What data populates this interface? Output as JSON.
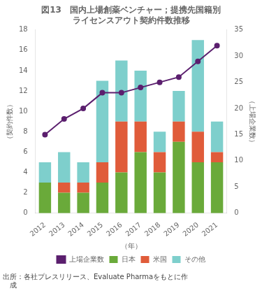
{
  "chart_data": {
    "type": "bar",
    "title": [
      "図13　国内上場創薬ベンチャー；提携先国籍別",
      "ライセンスアウト契約件数推移"
    ],
    "xlabel": "（年）",
    "ylabel": "（契約件数）",
    "y2label": "（上場企業数）",
    "annotations": [
      "出所：各社プレスリリース、Evaluate Pharmaをもとに作",
      "　成"
    ],
    "categories": [
      "2012",
      "2013",
      "2014",
      "2015",
      "2016",
      "2017",
      "2018",
      "2019",
      "2020",
      "2021"
    ],
    "series": [
      {
        "name": "日本",
        "type": "bar",
        "color": "#6aaa3a",
        "values": [
          3,
          2,
          2,
          3,
          4,
          6,
          4,
          7,
          5,
          5
        ]
      },
      {
        "name": "米国",
        "type": "bar",
        "color": "#e05c3a",
        "values": [
          0,
          1,
          1,
          2,
          5,
          3,
          2,
          2,
          3,
          1
        ]
      },
      {
        "name": "その他",
        "type": "bar",
        "color": "#7ecfcc",
        "values": [
          2,
          3,
          2,
          8,
          6,
          5,
          2,
          3,
          9,
          3
        ]
      },
      {
        "name": "上場企業数",
        "type": "line",
        "axis": "y2",
        "color": "#5b1f6e",
        "marker": "circle",
        "line_style": "solid",
        "values": [
          15,
          18,
          20,
          23,
          23,
          24,
          25,
          26,
          29,
          32
        ]
      }
    ],
    "stacked": true,
    "ylim": [
      0,
      18
    ],
    "yticks": [
      0,
      2,
      4,
      6,
      8,
      10,
      12,
      14,
      16,
      18
    ],
    "y2lim": [
      0,
      35
    ],
    "y2ticks": [
      0,
      5,
      10,
      15,
      20,
      25,
      30,
      35
    ],
    "grid": false,
    "legend": "bottom"
  }
}
